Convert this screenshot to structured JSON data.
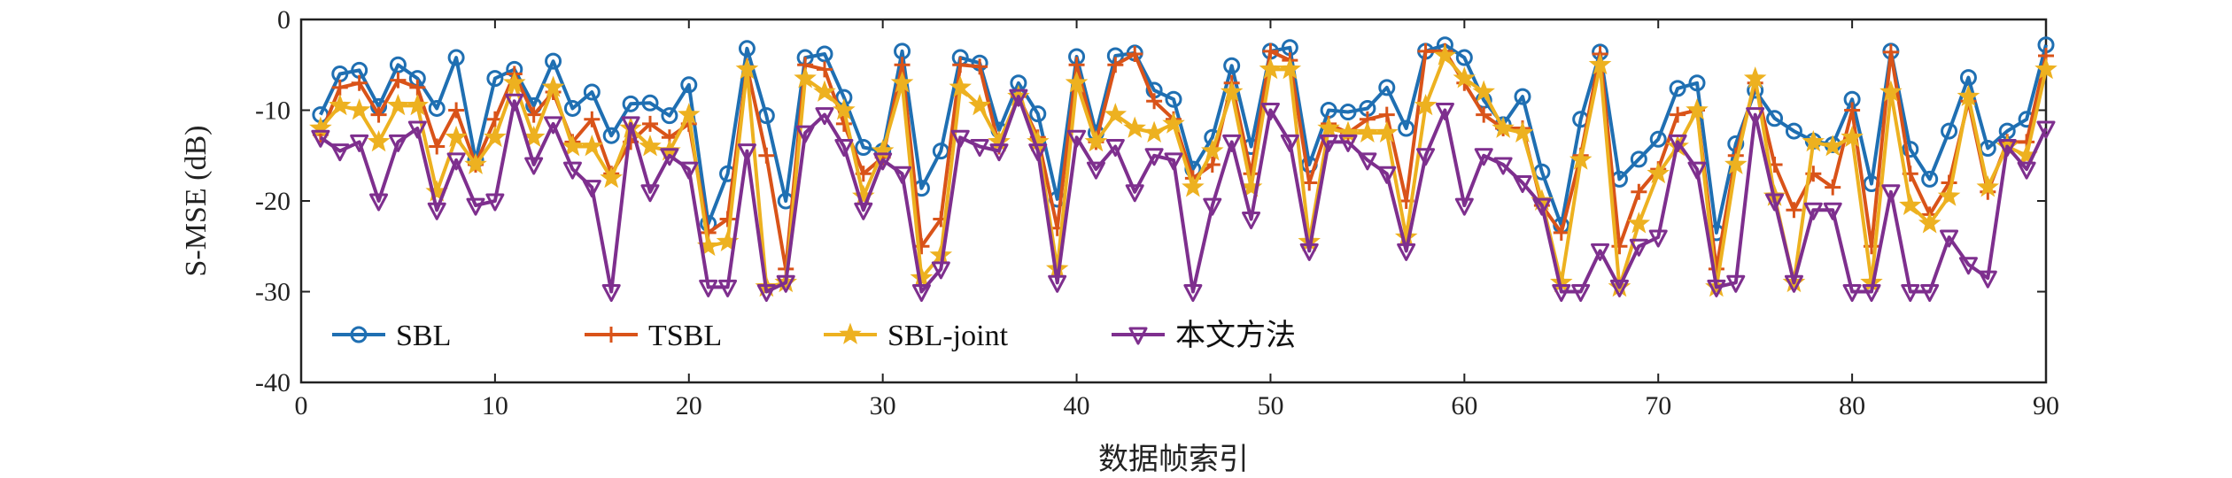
{
  "chart_data": {
    "type": "line",
    "title": "",
    "xlabel": "数据帧索引",
    "ylabel": "S-MSE (dB)",
    "xlim": [
      0,
      90
    ],
    "ylim": [
      -40,
      0
    ],
    "xticks": [
      0,
      10,
      20,
      30,
      40,
      50,
      60,
      70,
      80,
      90
    ],
    "yticks": [
      0,
      -10,
      -20,
      -30,
      -40
    ],
    "grid": false,
    "legend_position": "bottom-left",
    "x": [
      1,
      2,
      3,
      4,
      5,
      6,
      7,
      8,
      9,
      10,
      11,
      12,
      13,
      14,
      15,
      16,
      17,
      18,
      19,
      20,
      21,
      22,
      23,
      24,
      25,
      26,
      27,
      28,
      29,
      30,
      31,
      32,
      33,
      34,
      35,
      36,
      37,
      38,
      39,
      40,
      41,
      42,
      43,
      44,
      45,
      46,
      47,
      48,
      49,
      50,
      51,
      52,
      53,
      54,
      55,
      56,
      57,
      58,
      59,
      60,
      61,
      62,
      63,
      64,
      65,
      66,
      67,
      68,
      69,
      70,
      71,
      72,
      73,
      74,
      75,
      76,
      77,
      78,
      79,
      80,
      81,
      82,
      83,
      84,
      85,
      86,
      87,
      88,
      89,
      90
    ],
    "series": [
      {
        "name": "SBL",
        "color": "#1f6fb2",
        "marker": "circle",
        "values": [
          -10.5,
          -6,
          -5.6,
          -9.6,
          -5,
          -6.5,
          -9.8,
          -4.2,
          -15.5,
          -6.5,
          -5.5,
          -9.5,
          -4.6,
          -9.8,
          -8,
          -12.8,
          -9.3,
          -9.2,
          -10.6,
          -7.2,
          -22.5,
          -17,
          -3.2,
          -10.6,
          -20,
          -4.2,
          -3.8,
          -8.6,
          -14.1,
          -14.5,
          -3.5,
          -18.6,
          -14.5,
          -4.2,
          -4.8,
          -12.2,
          -7,
          -10.4,
          -19.8,
          -4.1,
          -12.5,
          -4,
          -3.7,
          -7.8,
          -8.8,
          -16.5,
          -13,
          -5.1,
          -14,
          -3.5,
          -3.1,
          -16,
          -10,
          -10.2,
          -9.8,
          -7.5,
          -12,
          -3.5,
          -2.8,
          -4.2,
          -8.9,
          -11.6,
          -8.5,
          -16.8,
          -22.7,
          -11,
          -3.6,
          -17.6,
          -15.4,
          -13.2,
          -7.6,
          -7,
          -23.5,
          -13.7,
          -7.8,
          -10.9,
          -12.3,
          -13.4,
          -13.8,
          -8.8,
          -18.1,
          -3.5,
          -14.3,
          -17.6,
          -12.3,
          -6.4,
          -14.2,
          -12.3,
          -11,
          -2.8
        ]
      },
      {
        "name": "TSBL",
        "color": "#d95319",
        "marker": "plus",
        "values": [
          -12.7,
          -7.5,
          -7,
          -10.5,
          -6.7,
          -7.5,
          -14,
          -10,
          -16,
          -11,
          -6,
          -10.5,
          -8,
          -13.5,
          -11,
          -17,
          -13.5,
          -11.5,
          -13,
          -11.5,
          -23.5,
          -22,
          -5.2,
          -15,
          -27.5,
          -5,
          -5.5,
          -11.5,
          -17,
          -15.2,
          -5,
          -25,
          -22,
          -5,
          -5.2,
          -14,
          -8.5,
          -13,
          -23,
          -5,
          -13.5,
          -5,
          -3.8,
          -9,
          -11,
          -17.5,
          -16,
          -7,
          -17,
          -3.5,
          -4.5,
          -18,
          -11.5,
          -12.5,
          -11,
          -10.5,
          -20,
          -3.5,
          -3.5,
          -7,
          -10.5,
          -12,
          -12,
          -20.5,
          -23.5,
          -15,
          -3.8,
          -25,
          -19,
          -16.5,
          -10.5,
          -10,
          -27.5,
          -15,
          -7,
          -16,
          -21,
          -17,
          -18.5,
          -10,
          -25,
          -3.6,
          -17,
          -21.5,
          -18,
          -9,
          -19,
          -13.5,
          -13.5,
          -4
        ]
      },
      {
        "name": "SBL-joint",
        "color": "#edb120",
        "marker": "star",
        "values": [
          -12,
          -9.5,
          -10,
          -13.5,
          -9.5,
          -9.5,
          -19,
          -13,
          -16,
          -13,
          -7,
          -13,
          -7.5,
          -14,
          -14,
          -17.5,
          -12,
          -14,
          -14.5,
          -10.5,
          -25,
          -24.5,
          -5.5,
          -29.5,
          -29,
          -6.5,
          -8,
          -10,
          -19.5,
          -14.5,
          -7,
          -28.5,
          -26,
          -7.5,
          -9.5,
          -13.5,
          -8.5,
          -13.5,
          -27.5,
          -7,
          -13.5,
          -10.5,
          -12,
          -12.5,
          -11.5,
          -18.5,
          -14.5,
          -8,
          -18.5,
          -5.5,
          -5.5,
          -24.5,
          -12,
          -12.5,
          -12.5,
          -12.5,
          -24,
          -9.5,
          -4,
          -6.5,
          -8,
          -12,
          -12.5,
          -20,
          -29,
          -15.5,
          -5,
          -29.5,
          -22.5,
          -17,
          -14,
          -10,
          -29.5,
          -16,
          -6.5,
          -19.5,
          -29,
          -13.5,
          -14,
          -13,
          -29,
          -8,
          -20.5,
          -22.5,
          -19.5,
          -8.5,
          -18.5,
          -14,
          -15,
          -5.5
        ]
      },
      {
        "name": "本文方法",
        "color": "#7e2f8e",
        "marker": "triangle-down",
        "values": [
          -13,
          -14.5,
          -13.5,
          -20,
          -13.5,
          -12,
          -21,
          -15.5,
          -20.5,
          -20,
          -9,
          -16,
          -11.5,
          -16.5,
          -18.5,
          -30,
          -11.5,
          -19,
          -15,
          -16.5,
          -29.5,
          -29.5,
          -14.5,
          -30,
          -29,
          -12.5,
          -10.5,
          -14,
          -21,
          -15.5,
          -17,
          -30,
          -27.5,
          -13,
          -14,
          -14.5,
          -8.5,
          -14.5,
          -29,
          -13,
          -16.5,
          -14,
          -19,
          -15,
          -15.5,
          -30,
          -20.5,
          -13.5,
          -22,
          -10,
          -13.5,
          -25.5,
          -13.5,
          -13.5,
          -15.5,
          -17,
          -25.5,
          -15,
          -10,
          -20.5,
          -15,
          -16,
          -18,
          -20.5,
          -30,
          -30,
          -25.5,
          -29.5,
          -25,
          -24,
          -13.5,
          -16.5,
          -29.5,
          -29,
          -10.5,
          -20,
          -29,
          -21,
          -21,
          -30,
          -30,
          -19,
          -30,
          -30,
          -24,
          -27,
          -28.5,
          -14,
          -16.5,
          -12
        ]
      }
    ]
  }
}
